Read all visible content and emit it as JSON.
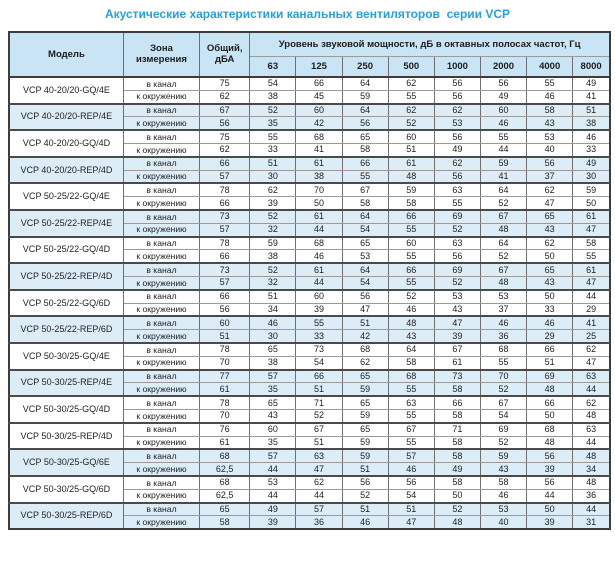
{
  "title": "Акустические характеристики канальных вентиляторов  серии VCP",
  "colors": {
    "title": "#29a0d9",
    "header_bg": "#c9e4f5",
    "stripe_bg": "#dcedf8",
    "border_dark": "#3d3d3d",
    "text": "#222222"
  },
  "table": {
    "headers": {
      "model": "Модель",
      "zone": "Зона измерения",
      "total": "Общий, дБА",
      "spl": "Уровень звуковой мощности, дБ в октавных полосах частот, Гц",
      "frequencies": [
        "63",
        "125",
        "250",
        "500",
        "1000",
        "2000",
        "4000",
        "8000"
      ]
    },
    "zone_labels": {
      "duct": "в канал",
      "ambient": "к окружению"
    },
    "groups": [
      {
        "model": "VCP 40-20/20-GQ/4E",
        "highlighted": false,
        "rows": [
          {
            "zone": "в канал",
            "total": "75",
            "values": [
              "54",
              "66",
              "64",
              "62",
              "56",
              "56",
              "55",
              "49"
            ]
          },
          {
            "zone": "к окружению",
            "total": "62",
            "values": [
              "38",
              "45",
              "59",
              "55",
              "56",
              "49",
              "46",
              "41"
            ]
          }
        ]
      },
      {
        "model": "VCP 40-20/20-REP/4E",
        "highlighted": true,
        "rows": [
          {
            "zone": "в канал",
            "total": "67",
            "values": [
              "52",
              "60",
              "64",
              "62",
              "62",
              "60",
              "58",
              "51"
            ]
          },
          {
            "zone": "к окружению",
            "total": "56",
            "values": [
              "35",
              "42",
              "56",
              "52",
              "53",
              "46",
              "43",
              "38"
            ]
          }
        ]
      },
      {
        "model": "VCP 40-20/20-GQ/4D",
        "highlighted": false,
        "rows": [
          {
            "zone": "в канал",
            "total": "75",
            "values": [
              "55",
              "68",
              "65",
              "60",
              "56",
              "55",
              "53",
              "46"
            ]
          },
          {
            "zone": "к окружению",
            "total": "62",
            "values": [
              "33",
              "41",
              "58",
              "51",
              "49",
              "44",
              "40",
              "33"
            ]
          }
        ]
      },
      {
        "model": "VCP 40-20/20-REP/4D",
        "highlighted": true,
        "rows": [
          {
            "zone": "в канал",
            "total": "66",
            "values": [
              "51",
              "61",
              "66",
              "61",
              "62",
              "59",
              "56",
              "49"
            ]
          },
          {
            "zone": "к окружению",
            "total": "57",
            "values": [
              "30",
              "38",
              "55",
              "48",
              "56",
              "41",
              "37",
              "30"
            ]
          }
        ]
      },
      {
        "model": "VCP 50-25/22-GQ/4E",
        "highlighted": false,
        "rows": [
          {
            "zone": "в канал",
            "total": "78",
            "values": [
              "62",
              "70",
              "67",
              "59",
              "63",
              "64",
              "62",
              "59"
            ]
          },
          {
            "zone": "к окружению",
            "total": "66",
            "values": [
              "39",
              "50",
              "58",
              "58",
              "55",
              "52",
              "47",
              "50"
            ]
          }
        ]
      },
      {
        "model": "VCP 50-25/22-REP/4E",
        "highlighted": true,
        "rows": [
          {
            "zone": "в канал",
            "total": "73",
            "values": [
              "52",
              "61",
              "64",
              "66",
              "69",
              "67",
              "65",
              "61"
            ]
          },
          {
            "zone": "к окружению",
            "total": "57",
            "values": [
              "32",
              "44",
              "54",
              "55",
              "52",
              "48",
              "43",
              "47"
            ]
          }
        ]
      },
      {
        "model": "VCP 50-25/22-GQ/4D",
        "highlighted": false,
        "rows": [
          {
            "zone": "в канал",
            "total": "78",
            "values": [
              "59",
              "68",
              "65",
              "60",
              "63",
              "64",
              "62",
              "58"
            ]
          },
          {
            "zone": "к окружению",
            "total": "66",
            "values": [
              "38",
              "46",
              "53",
              "55",
              "56",
              "52",
              "50",
              "55"
            ]
          }
        ]
      },
      {
        "model": "VCP 50-25/22-REP/4D",
        "highlighted": true,
        "rows": [
          {
            "zone": "в канал",
            "total": "73",
            "values": [
              "52",
              "61",
              "64",
              "66",
              "69",
              "67",
              "65",
              "61"
            ]
          },
          {
            "zone": "к окружению",
            "total": "57",
            "values": [
              "32",
              "44",
              "54",
              "55",
              "52",
              "48",
              "43",
              "47"
            ]
          }
        ]
      },
      {
        "model": "VCP 50-25/22-GQ/6D",
        "highlighted": false,
        "rows": [
          {
            "zone": "в канал",
            "total": "66",
            "values": [
              "51",
              "60",
              "56",
              "52",
              "53",
              "53",
              "50",
              "44"
            ]
          },
          {
            "zone": "к окружению",
            "total": "56",
            "values": [
              "34",
              "39",
              "47",
              "46",
              "43",
              "37",
              "33",
              "29"
            ]
          }
        ]
      },
      {
        "model": "VCP 50-25/22-REP/6D",
        "highlighted": true,
        "rows": [
          {
            "zone": "в канал",
            "total": "60",
            "values": [
              "46",
              "55",
              "51",
              "48",
              "47",
              "46",
              "46",
              "41"
            ]
          },
          {
            "zone": "к окружению",
            "total": "51",
            "values": [
              "30",
              "33",
              "42",
              "43",
              "39",
              "36",
              "29",
              "25"
            ]
          }
        ]
      },
      {
        "model": "VCP 50-30/25-GQ/4E",
        "highlighted": false,
        "rows": [
          {
            "zone": "в канал",
            "total": "78",
            "values": [
              "65",
              "73",
              "68",
              "64",
              "67",
              "68",
              "66",
              "62"
            ]
          },
          {
            "zone": "к окружению",
            "total": "70",
            "values": [
              "38",
              "54",
              "62",
              "58",
              "61",
              "55",
              "51",
              "47"
            ]
          }
        ]
      },
      {
        "model": "VCP 50-30/25-REP/4E",
        "highlighted": true,
        "rows": [
          {
            "zone": "в канал",
            "total": "77",
            "values": [
              "57",
              "66",
              "65",
              "68",
              "73",
              "70",
              "69",
              "63"
            ]
          },
          {
            "zone": "к окружению",
            "total": "61",
            "values": [
              "35",
              "51",
              "59",
              "55",
              "58",
              "52",
              "48",
              "44"
            ]
          }
        ]
      },
      {
        "model": "VCP 50-30/25-GQ/4D",
        "highlighted": false,
        "rows": [
          {
            "zone": "в канал",
            "total": "78",
            "values": [
              "65",
              "71",
              "65",
              "63",
              "66",
              "67",
              "66",
              "62"
            ]
          },
          {
            "zone": "к окружению",
            "total": "70",
            "values": [
              "43",
              "52",
              "59",
              "55",
              "58",
              "54",
              "50",
              "48"
            ]
          }
        ]
      },
      {
        "model": "VCP 50-30/25-REP/4D",
        "highlighted": false,
        "rows": [
          {
            "zone": "в канал",
            "total": "76",
            "values": [
              "60",
              "67",
              "65",
              "67",
              "71",
              "69",
              "68",
              "63"
            ]
          },
          {
            "zone": "к окружению",
            "total": "61",
            "values": [
              "35",
              "51",
              "59",
              "55",
              "58",
              "52",
              "48",
              "44"
            ]
          }
        ]
      },
      {
        "model": "VCP 50-30/25-GQ/6E",
        "highlighted": true,
        "rows": [
          {
            "zone": "в канал",
            "total": "68",
            "values": [
              "57",
              "63",
              "59",
              "57",
              "58",
              "59",
              "56",
              "48"
            ]
          },
          {
            "zone": "к окружению",
            "total": "62,5",
            "values": [
              "44",
              "47",
              "51",
              "46",
              "49",
              "43",
              "39",
              "34"
            ]
          }
        ]
      },
      {
        "model": "VCP 50-30/25-GQ/6D",
        "highlighted": false,
        "rows": [
          {
            "zone": "в канал",
            "total": "68",
            "values": [
              "53",
              "62",
              "56",
              "56",
              "58",
              "58",
              "56",
              "48"
            ]
          },
          {
            "zone": "к окружению",
            "total": "62,5",
            "values": [
              "44",
              "44",
              "52",
              "54",
              "50",
              "46",
              "44",
              "36"
            ]
          }
        ]
      },
      {
        "model": "VCP 50-30/25-REP/6D",
        "highlighted": true,
        "rows": [
          {
            "zone": "в канал",
            "total": "65",
            "values": [
              "49",
              "57",
              "51",
              "51",
              "52",
              "53",
              "50",
              "44"
            ]
          },
          {
            "zone": "к окружению",
            "total": "58",
            "values": [
              "39",
              "36",
              "46",
              "47",
              "48",
              "40",
              "39",
              "31"
            ]
          }
        ]
      }
    ]
  }
}
